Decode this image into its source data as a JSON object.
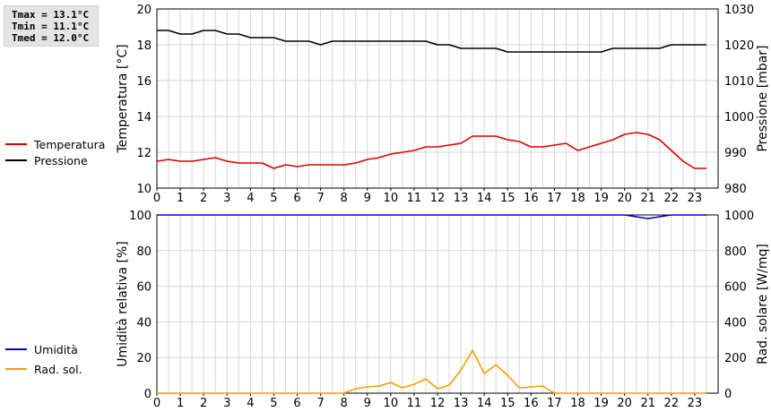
{
  "stats": {
    "tmax": "Tmax = 13.1°C",
    "tmin": "Tmin = 11.1°C",
    "tmed": "Tmed = 12.0°C"
  },
  "legend_top": [
    {
      "label": "Temperatura",
      "color": "#e00000"
    },
    {
      "label": "Pressione",
      "color": "#000000"
    }
  ],
  "legend_bottom": [
    {
      "label": "Umidità",
      "color": "#0000c8"
    },
    {
      "label": "Rad. sol.",
      "color": "#f0a000"
    }
  ],
  "chart_data": [
    {
      "type": "line",
      "xlabel": "",
      "ylabel": "Temperatura [°C]",
      "y2label": "Pressione [mbar]",
      "xlim": [
        0,
        24
      ],
      "ylim": [
        10,
        20
      ],
      "y2lim": [
        980,
        1030
      ],
      "xticks": [
        "0",
        "1",
        "2",
        "3",
        "4",
        "5",
        "6",
        "7",
        "8",
        "9",
        "10",
        "11",
        "12",
        "13",
        "14",
        "15",
        "16",
        "17",
        "18",
        "19",
        "20",
        "21",
        "22",
        "23"
      ],
      "yticks": [
        10,
        12,
        14,
        16,
        18,
        20
      ],
      "y2ticks": [
        980,
        990,
        1000,
        1010,
        1020,
        1030
      ],
      "grid": true,
      "series": [
        {
          "name": "Temperatura",
          "axis": "left",
          "color": "#e00000",
          "x": [
            0,
            0.5,
            1,
            1.5,
            2,
            2.5,
            3,
            3.5,
            4,
            4.5,
            5,
            5.5,
            6,
            6.5,
            7,
            7.5,
            8,
            8.5,
            9,
            9.5,
            10,
            10.5,
            11,
            11.5,
            12,
            12.5,
            13,
            13.5,
            14,
            14.5,
            15,
            15.5,
            16,
            16.5,
            17,
            17.5,
            18,
            18.5,
            19,
            19.5,
            20,
            20.5,
            21,
            21.5,
            22,
            22.5,
            23,
            23.5
          ],
          "values": [
            11.5,
            11.6,
            11.5,
            11.5,
            11.6,
            11.7,
            11.5,
            11.4,
            11.4,
            11.4,
            11.1,
            11.3,
            11.2,
            11.3,
            11.3,
            11.3,
            11.3,
            11.4,
            11.6,
            11.7,
            11.9,
            12.0,
            12.1,
            12.3,
            12.3,
            12.4,
            12.5,
            12.9,
            12.9,
            12.9,
            12.7,
            12.6,
            12.3,
            12.3,
            12.4,
            12.5,
            12.1,
            12.3,
            12.5,
            12.7,
            13.0,
            13.1,
            13.0,
            12.7,
            12.1,
            11.5,
            11.1,
            11.1
          ]
        },
        {
          "name": "Pressione",
          "axis": "right",
          "color": "#000000",
          "x": [
            0,
            0.5,
            1,
            1.5,
            2,
            2.5,
            3,
            3.5,
            4,
            4.5,
            5,
            5.5,
            6,
            6.5,
            7,
            7.5,
            8,
            8.5,
            9,
            9.5,
            10,
            10.5,
            11,
            11.5,
            12,
            12.5,
            13,
            13.5,
            14,
            14.5,
            15,
            15.5,
            16,
            16.5,
            17,
            17.5,
            18,
            18.5,
            19,
            19.5,
            20,
            20.5,
            21,
            21.5,
            22,
            22.5,
            23,
            23.5
          ],
          "values": [
            1024,
            1024,
            1023,
            1023,
            1024,
            1024,
            1023,
            1023,
            1022,
            1022,
            1022,
            1021,
            1021,
            1021,
            1020,
            1021,
            1021,
            1021,
            1021,
            1021,
            1021,
            1021,
            1021,
            1021,
            1020,
            1020,
            1019,
            1019,
            1019,
            1019,
            1018,
            1018,
            1018,
            1018,
            1018,
            1018,
            1018,
            1018,
            1018,
            1019,
            1019,
            1019,
            1019,
            1019,
            1020,
            1020,
            1020,
            1020
          ]
        }
      ]
    },
    {
      "type": "line",
      "xlabel": "",
      "ylabel": "Umidità relativa [%]",
      "y2label": "Rad. solare [W/mq]",
      "xlim": [
        0,
        24
      ],
      "ylim": [
        0,
        100
      ],
      "y2lim": [
        0,
        1000
      ],
      "xticks": [
        "0",
        "1",
        "2",
        "3",
        "4",
        "5",
        "6",
        "7",
        "8",
        "9",
        "10",
        "11",
        "12",
        "13",
        "14",
        "15",
        "16",
        "17",
        "18",
        "19",
        "20",
        "21",
        "22",
        "23"
      ],
      "yticks": [
        0,
        20,
        40,
        60,
        80,
        100
      ],
      "y2ticks": [
        0,
        200,
        400,
        600,
        800,
        1000
      ],
      "grid": true,
      "series": [
        {
          "name": "Umidità",
          "axis": "left",
          "color": "#0000c8",
          "x": [
            0,
            1,
            2,
            3,
            4,
            5,
            6,
            7,
            8,
            9,
            10,
            11,
            12,
            13,
            14,
            15,
            16,
            17,
            18,
            19,
            20,
            20.5,
            21,
            21.5,
            22,
            22.5,
            23,
            23.5
          ],
          "values": [
            100,
            100,
            100,
            100,
            100,
            100,
            100,
            100,
            100,
            100,
            100,
            100,
            100,
            100,
            100,
            100,
            100,
            100,
            100,
            100,
            100,
            99,
            98,
            99,
            100,
            100,
            100,
            100
          ]
        },
        {
          "name": "Rad. sol.",
          "axis": "right",
          "color": "#f0a000",
          "x": [
            0,
            1,
            2,
            3,
            4,
            5,
            6,
            7,
            8,
            8.5,
            9,
            9.5,
            10,
            10.5,
            11,
            11.5,
            12,
            12.5,
            13,
            13.5,
            14,
            14.5,
            15,
            15.5,
            16,
            16.5,
            17,
            18,
            19,
            20,
            21,
            22,
            23,
            23.5
          ],
          "values": [
            0,
            0,
            0,
            0,
            0,
            0,
            0,
            0,
            0,
            25,
            35,
            40,
            60,
            30,
            50,
            80,
            25,
            45,
            130,
            240,
            110,
            160,
            100,
            30,
            35,
            40,
            0,
            0,
            0,
            0,
            0,
            0,
            0,
            0
          ]
        }
      ]
    }
  ]
}
